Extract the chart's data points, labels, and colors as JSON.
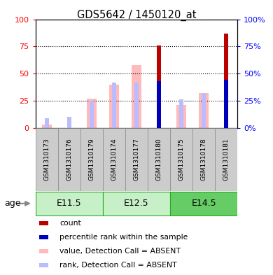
{
  "title": "GDS5642 / 1450120_at",
  "samples": [
    "GSM1310173",
    "GSM1310176",
    "GSM1310179",
    "GSM1310174",
    "GSM1310177",
    "GSM1310180",
    "GSM1310175",
    "GSM1310178",
    "GSM1310181"
  ],
  "age_groups": [
    {
      "label": "E11.5",
      "start": 0,
      "end": 3
    },
    {
      "label": "E12.5",
      "start": 3,
      "end": 6
    },
    {
      "label": "E14.5",
      "start": 6,
      "end": 9
    }
  ],
  "value_absent": [
    3,
    0,
    27,
    40,
    58,
    0,
    21,
    32,
    0
  ],
  "rank_absent": [
    9,
    10,
    25,
    42,
    42,
    0,
    26,
    32,
    45
  ],
  "count": [
    0,
    0,
    0,
    0,
    0,
    76,
    0,
    0,
    87
  ],
  "percentile_rank": [
    0,
    0,
    0,
    0,
    0,
    43,
    0,
    0,
    44
  ],
  "colors": {
    "count": "#bb0000",
    "percentile_rank": "#0000bb",
    "value_absent": "#ffbbbb",
    "rank_absent": "#bbbbff",
    "bg_label": "#cccccc",
    "bg_label_border": "#888888",
    "age_group_light": "#c8f0c8",
    "age_group_dark": "#66cc66",
    "age_group_border": "#22aa22"
  },
  "ylim": [
    0,
    100
  ],
  "yticks": [
    0,
    25,
    50,
    75,
    100
  ],
  "legend": [
    {
      "color": "#bb0000",
      "label": "count"
    },
    {
      "color": "#0000bb",
      "label": "percentile rank within the sample"
    },
    {
      "color": "#ffbbbb",
      "label": "value, Detection Call = ABSENT"
    },
    {
      "color": "#bbbbff",
      "label": "rank, Detection Call = ABSENT"
    }
  ],
  "figsize": [
    3.9,
    3.93
  ],
  "dpi": 100
}
